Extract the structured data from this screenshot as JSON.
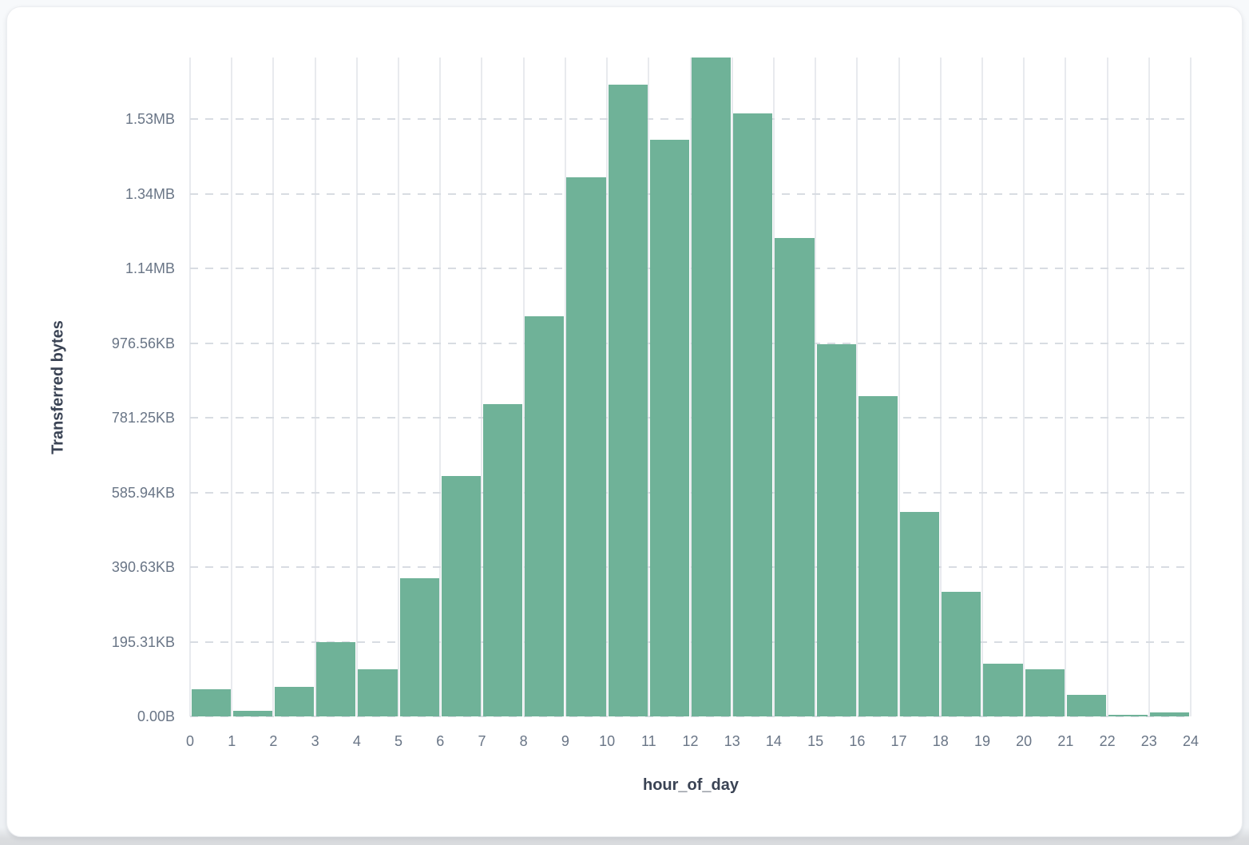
{
  "page": {
    "background": "#f3f5f8"
  },
  "card": {
    "background": "#ffffff",
    "border_color": "#eceef1"
  },
  "chart_data": {
    "type": "bar",
    "title": "",
    "xlabel": "hour_of_day",
    "ylabel": "Transferred bytes",
    "categories": [
      0,
      1,
      2,
      3,
      4,
      5,
      6,
      7,
      8,
      9,
      10,
      11,
      12,
      13,
      14,
      15,
      16,
      17,
      18,
      19,
      20,
      21,
      22,
      23
    ],
    "values_bytes": [
      73000,
      15000,
      78500,
      200000,
      126000,
      370000,
      645000,
      837000,
      1071000,
      1444000,
      1692000,
      1545000,
      1765000,
      1615000,
      1281000,
      998000,
      857000,
      548000,
      333000,
      141000,
      127000,
      57000,
      4500,
      11500
    ],
    "x_tick_labels": [
      "0",
      "1",
      "2",
      "3",
      "4",
      "5",
      "6",
      "7",
      "8",
      "9",
      "10",
      "11",
      "12",
      "13",
      "14",
      "15",
      "16",
      "17",
      "18",
      "19",
      "20",
      "21",
      "22",
      "23",
      "24"
    ],
    "y_ticks": [
      {
        "value": 0,
        "label": "0.00B"
      },
      {
        "value": 200000,
        "label": "195.31KB"
      },
      {
        "value": 400000,
        "label": "390.63KB"
      },
      {
        "value": 600000,
        "label": "585.94KB"
      },
      {
        "value": 800000,
        "label": "781.25KB"
      },
      {
        "value": 1000000,
        "label": "976.56KB"
      },
      {
        "value": 1200000,
        "label": "1.14MB"
      },
      {
        "value": 1400000,
        "label": "1.34MB"
      },
      {
        "value": 1600000,
        "label": "1.53MB"
      }
    ],
    "ylim": [
      0,
      1765000
    ],
    "grid": true,
    "legend": false,
    "colors": {
      "bar": "#6FB298",
      "vgrid": "#e8eaee",
      "hgrid_dash": "#d8dce2",
      "tick_text": "#697586",
      "axis_title_text": "#3a4354"
    }
  }
}
